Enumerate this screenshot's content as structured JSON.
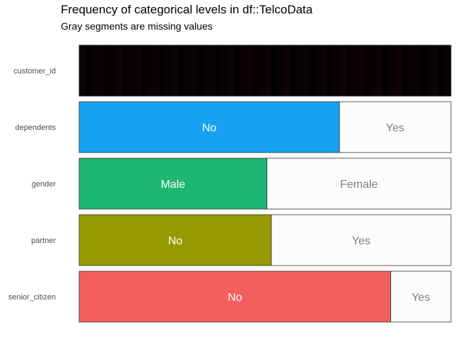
{
  "chart_data": {
    "type": "bar",
    "orientation": "horizontal-stacked-proportion",
    "title": "Frequency of categorical levels in df::TelcoData",
    "subtitle": "Gray segments are missing values",
    "categories": [
      "customer_id",
      "dependents",
      "gender",
      "partner",
      "senior_citizen"
    ],
    "bars": [
      {
        "variable": "customer_id",
        "high_cardinality": true,
        "segments": [
          {
            "level": "",
            "proportion": 1.0,
            "color": "#050003",
            "label_color": "#ffffff"
          }
        ]
      },
      {
        "variable": "dependents",
        "segments": [
          {
            "level": "No",
            "proportion": 0.7,
            "color": "#17a1f3",
            "label_color": "#ffffff"
          },
          {
            "level": "Yes",
            "proportion": 0.3,
            "color": "#fcfcfc",
            "label_color": "#7f7f7f"
          }
        ]
      },
      {
        "variable": "gender",
        "segments": [
          {
            "level": "Male",
            "proportion": 0.505,
            "color": "#1cb871",
            "label_color": "#ffffff"
          },
          {
            "level": "Female",
            "proportion": 0.495,
            "color": "#fcfcfc",
            "label_color": "#7f7f7f"
          }
        ]
      },
      {
        "variable": "partner",
        "segments": [
          {
            "level": "No",
            "proportion": 0.517,
            "color": "#959a00",
            "label_color": "#ffffff"
          },
          {
            "level": "Yes",
            "proportion": 0.483,
            "color": "#fcfcfc",
            "label_color": "#7f7f7f"
          }
        ]
      },
      {
        "variable": "senior_citizen",
        "segments": [
          {
            "level": "No",
            "proportion": 0.838,
            "color": "#f35f5f",
            "label_color": "#ffffff"
          },
          {
            "level": "Yes",
            "proportion": 0.162,
            "color": "#fcfcfc",
            "label_color": "#7f7f7f"
          }
        ]
      }
    ],
    "xlim": [
      0,
      1
    ],
    "grid": false,
    "legend": "none"
  }
}
